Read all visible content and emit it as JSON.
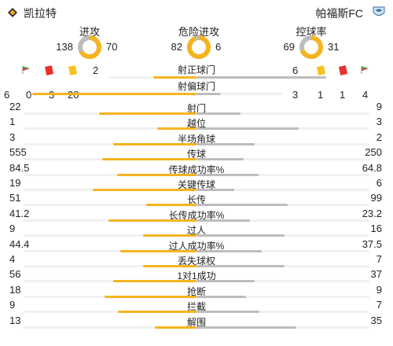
{
  "teams": {
    "home": "凯拉特",
    "away": "帕福斯FC"
  },
  "donuts": [
    {
      "title": "进攻",
      "left": "138",
      "right": "70",
      "left_share": 66.3
    },
    {
      "title": "危险进攻",
      "left": "82",
      "right": "6",
      "left_share": 93.2
    },
    {
      "title": "控球率",
      "left": "69",
      "right": "31",
      "left_share": 69
    }
  ],
  "shots_on": {
    "label": "射正球门",
    "home": "2",
    "away": "6",
    "home_share": 25
  },
  "shots_off": {
    "label": "射偏球门",
    "home": "20",
    "away": "3",
    "home_share": 87
  },
  "home_counts": {
    "corner": "6",
    "red": "0",
    "yellow": "3"
  },
  "away_counts": {
    "yellow": "1",
    "red": "1",
    "corner": "4"
  },
  "stats": [
    {
      "label": "射门",
      "left": "22",
      "right": "9",
      "l": 22,
      "r": 9
    },
    {
      "label": "越位",
      "left": "1",
      "right": "3",
      "l": 1,
      "r": 3
    },
    {
      "label": "半场角球",
      "left": "3",
      "right": "2",
      "l": 3,
      "r": 2
    },
    {
      "label": "传球",
      "left": "555",
      "right": "250",
      "l": 555,
      "r": 250
    },
    {
      "label": "传球成功率%",
      "left": "84.5",
      "right": "64.8",
      "l": 84.5,
      "r": 64.8
    },
    {
      "label": "关键传球",
      "left": "19",
      "right": "6",
      "l": 19,
      "r": 6
    },
    {
      "label": "长传",
      "left": "51",
      "right": "99",
      "l": 51,
      "r": 99
    },
    {
      "label": "长传成功率%",
      "left": "41.2",
      "right": "23.2",
      "l": 41.2,
      "r": 23.2
    },
    {
      "label": "过人",
      "left": "9",
      "right": "16",
      "l": 9,
      "r": 16
    },
    {
      "label": "过人成功率%",
      "left": "44.4",
      "right": "37.5",
      "l": 44.4,
      "r": 37.5
    },
    {
      "label": "丢失球权",
      "left": "4",
      "right": "7",
      "l": 4,
      "r": 7
    },
    {
      "label": "1对1成功",
      "left": "56",
      "right": "37",
      "l": 56,
      "r": 37
    },
    {
      "label": "抢断",
      "left": "18",
      "right": "9",
      "l": 18,
      "r": 9
    },
    {
      "label": "拦截",
      "left": "9",
      "right": "7",
      "l": 9,
      "r": 7
    },
    {
      "label": "解围",
      "left": "13",
      "right": "35",
      "l": 13,
      "r": 35
    }
  ],
  "colors": {
    "home": "#f5b41f",
    "away": "#bdbdbd",
    "track": "#f1f1f1"
  }
}
